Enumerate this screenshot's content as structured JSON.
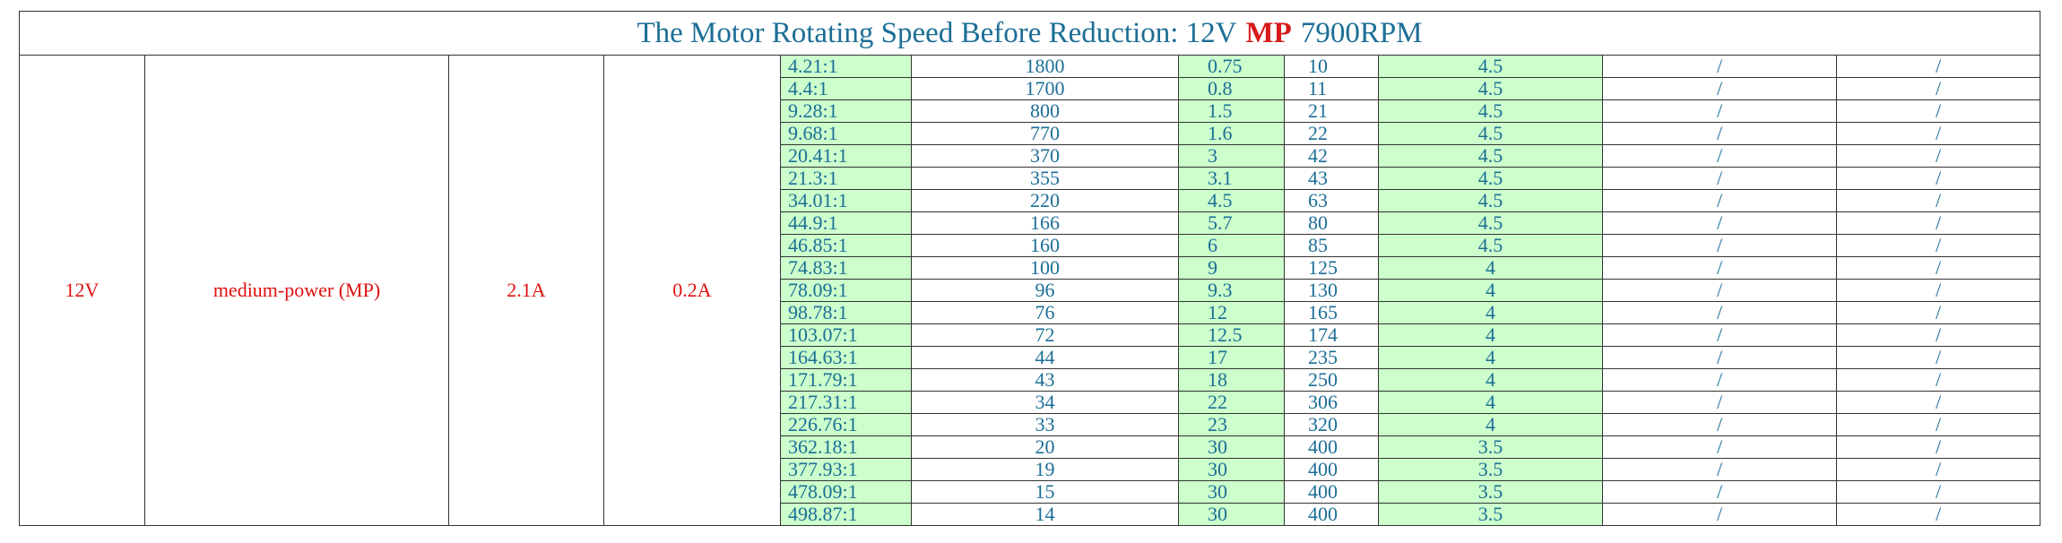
{
  "title": {
    "parts": [
      "The Motor Rotating Speed Before Reduction: 12V",
      "MP",
      "7900RPM"
    ]
  },
  "left": [
    "12V",
    "medium-power (MP)",
    "2.1A",
    "0.2A"
  ],
  "table": {
    "rows": [
      [
        "4.21:1",
        "1800",
        "0.75",
        "10",
        "4.5",
        "/",
        "/"
      ],
      [
        "4.4:1",
        "1700",
        "0.8",
        "11",
        "4.5",
        "/",
        "/"
      ],
      [
        "9.28:1",
        "800",
        "1.5",
        "21",
        "4.5",
        "/",
        "/"
      ],
      [
        "9.68:1",
        "770",
        "1.6",
        "22",
        "4.5",
        "/",
        "/"
      ],
      [
        "20.41:1",
        "370",
        "3",
        "42",
        "4.5",
        "/",
        "/"
      ],
      [
        "21.3:1",
        "355",
        "3.1",
        "43",
        "4.5",
        "/",
        "/"
      ],
      [
        "34.01:1",
        "220",
        "4.5",
        "63",
        "4.5",
        "/",
        "/"
      ],
      [
        "44.9:1",
        "166",
        "5.7",
        "80",
        "4.5",
        "/",
        "/"
      ],
      [
        "46.85:1",
        "160",
        "6",
        "85",
        "4.5",
        "/",
        "/"
      ],
      [
        "74.83:1",
        "100",
        "9",
        "125",
        "4",
        "/",
        "/"
      ],
      [
        "78.09:1",
        "96",
        "9.3",
        "130",
        "4",
        "/",
        "/"
      ],
      [
        "98.78:1",
        "76",
        "12",
        "165",
        "4",
        "/",
        "/"
      ],
      [
        "103.07:1",
        "72",
        "12.5",
        "174",
        "4",
        "/",
        "/"
      ],
      [
        "164.63:1",
        "44",
        "17",
        "235",
        "4",
        "/",
        "/"
      ],
      [
        "171.79:1",
        "43",
        "18",
        "250",
        "4",
        "/",
        "/"
      ],
      [
        "217.31:1",
        "34",
        "22",
        "306",
        "4",
        "/",
        "/"
      ],
      [
        "226.76:1",
        "33",
        "23",
        "320",
        "4",
        "/",
        "/"
      ],
      [
        "362.18:1",
        "20",
        "30",
        "400",
        "3.5",
        "/",
        "/"
      ],
      [
        "377.93:1",
        "19",
        "30",
        "400",
        "3.5",
        "/",
        "/"
      ],
      [
        "478.09:1",
        "15",
        "30",
        "400",
        "3.5",
        "/",
        "/"
      ],
      [
        "498.87:1",
        "14",
        "30",
        "400",
        "3.5",
        "/",
        "/"
      ]
    ]
  }
}
